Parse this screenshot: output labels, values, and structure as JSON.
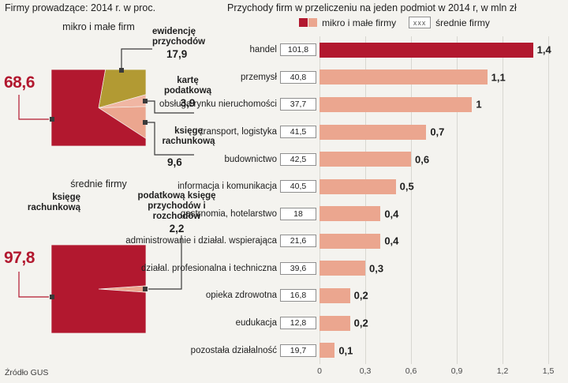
{
  "colors": {
    "dark_red": "#b2182f",
    "salmon": "#eba68f",
    "salmon_light": "#f0b6a3",
    "olive": "#b29a33",
    "background": "#f4f3ef",
    "gridline": "#d8d7d1"
  },
  "left_panel": {
    "title": "Firmy prowadzące: 2014 r. w proc.",
    "source": "Źródło GUS",
    "pie_micro": {
      "title": "mikro i małe firm",
      "main_value": "68,6",
      "callouts": [
        {
          "label": "ewidencję przychodów",
          "value": "17,9"
        },
        {
          "label": "kartę podatkową",
          "value": "3,9"
        },
        {
          "label": "księgę rachunkową",
          "value": "9,6"
        }
      ]
    },
    "pie_medium": {
      "title": "średnie firmy",
      "main_label": "księgę rachunkową",
      "main_value": "97,8",
      "callouts": [
        {
          "label": "podatkową księgę przychodów i rozchodów",
          "value": "2,2"
        }
      ]
    }
  },
  "right_panel": {
    "title": "Przychody firm w przeliczeniu na jeden podmiot w 2014 r, w mln zł",
    "legend": {
      "micro": "mikro i małe firmy",
      "medium": "średnie firmy",
      "box_text": "xxx"
    }
  },
  "chart_data": [
    {
      "type": "pie",
      "variant": "square-pie",
      "title": "mikro i małe firm",
      "unit": "percent",
      "start_angle": 10,
      "slices": [
        {
          "label": "ewidencję przychodów",
          "value": 17.9,
          "display": "17,9",
          "color_key": "olive"
        },
        {
          "label": "kartę podatkową",
          "value": 3.9,
          "display": "3,9",
          "color_key": "salmon_light"
        },
        {
          "label": "księgę rachunkową",
          "value": 9.6,
          "display": "9,6",
          "color_key": "salmon"
        },
        {
          "label": "",
          "value": 68.6,
          "display": "68,6",
          "color_key": "dark_red"
        }
      ]
    },
    {
      "type": "pie",
      "variant": "square-pie",
      "title": "średnie firmy",
      "unit": "percent",
      "start_angle": 86.04,
      "slices": [
        {
          "label": "podatkową księgę przychodów i rozchodów",
          "value": 2.2,
          "display": "2,2",
          "color_key": "salmon"
        },
        {
          "label": "księgę rachunkową",
          "value": 97.8,
          "display": "97,8",
          "color_key": "dark_red"
        }
      ]
    },
    {
      "type": "bar",
      "orientation": "horizontal",
      "title": "Przychody firm w przeliczeniu na jeden podmiot w 2014 r, w mln zł",
      "categories": [
        "handel",
        "przemysł",
        "obsługa rynku nieruchomości",
        "transport, logistyka",
        "budownictwo",
        "informacja i komunikacja",
        "gastrnomia, hotelarstwo",
        "administrowanie i działal. wspierająca",
        "działal. profesionalna i techniczna",
        "opieka zdrowotna",
        "eudukacja",
        "pozostała działalność"
      ],
      "series": [
        {
          "name": "mikro i małe firmy",
          "values": [
            1.4,
            1.1,
            1,
            0.7,
            0.6,
            0.5,
            0.4,
            0.4,
            0.3,
            0.2,
            0.2,
            0.1
          ],
          "display": [
            "1,4",
            "1,1",
            "1",
            "0,7",
            "0,6",
            "0,5",
            "0,4",
            "0,4",
            "0,3",
            "0,2",
            "0,2",
            "0,1"
          ]
        },
        {
          "name": "średnie firmy",
          "values": [
            101.8,
            40.8,
            37.7,
            41.5,
            42.5,
            40.5,
            18,
            21.6,
            39.6,
            16.8,
            12.8,
            19.7
          ],
          "display": [
            "101,8",
            "40,8",
            "37,7",
            "41,5",
            "42,5",
            "40,5",
            "18",
            "21,6",
            "39,6",
            "16,8",
            "12,8",
            "19,7"
          ]
        }
      ],
      "xlim": [
        0,
        1.5
      ],
      "xticks": [
        "0",
        "0,3",
        "0,6",
        "0,9",
        "1,2",
        "1,5"
      ],
      "highlight_index": 0,
      "grid": true,
      "legend_position": "top"
    }
  ]
}
